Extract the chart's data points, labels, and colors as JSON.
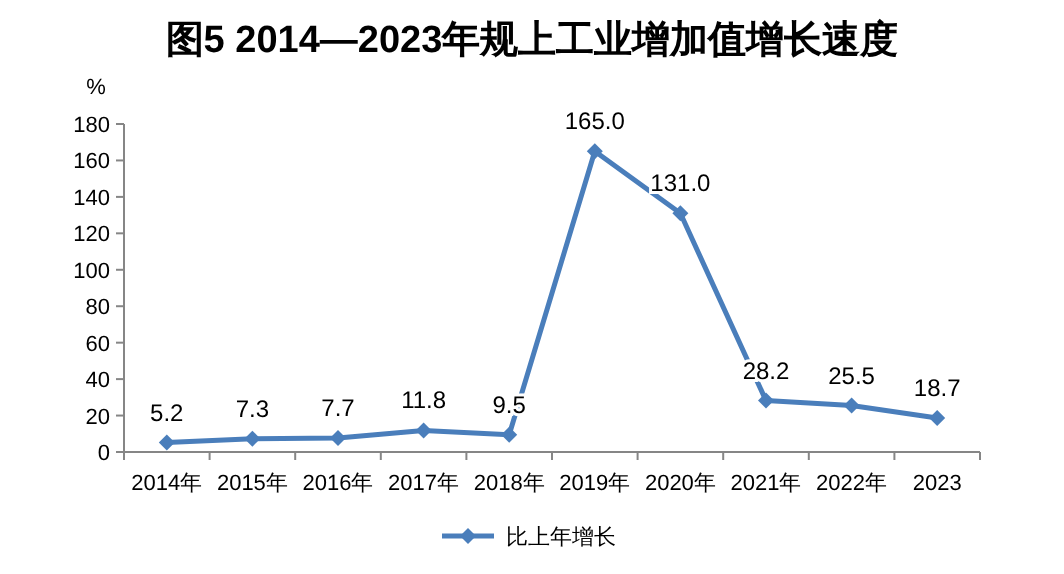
{
  "chart_data": {
    "type": "line",
    "title": "图5 2014—2023年规上工业增加值增长速度",
    "ylabel": "%",
    "categories": [
      "2014年",
      "2015年",
      "2016年",
      "2017年",
      "2018年",
      "2019年",
      "2020年",
      "2021年",
      "2022年",
      "2023"
    ],
    "series": [
      {
        "name": "比上年增长",
        "color": "#4a7ebb",
        "values": [
          5.2,
          7.3,
          7.7,
          11.8,
          9.5,
          165.0,
          131.0,
          28.2,
          25.5,
          18.7
        ]
      }
    ],
    "ylim": [
      0,
      180
    ],
    "yticks": [
      0,
      20,
      40,
      60,
      80,
      100,
      120,
      140,
      160,
      180
    ],
    "value_labels": [
      "5.2",
      "7.3",
      "7.7",
      "11.8",
      "9.5",
      "165.0",
      "131.0",
      "28.2",
      "25.5",
      "18.7"
    ],
    "marker": "diamond",
    "legend": "bottom",
    "grid": false
  }
}
